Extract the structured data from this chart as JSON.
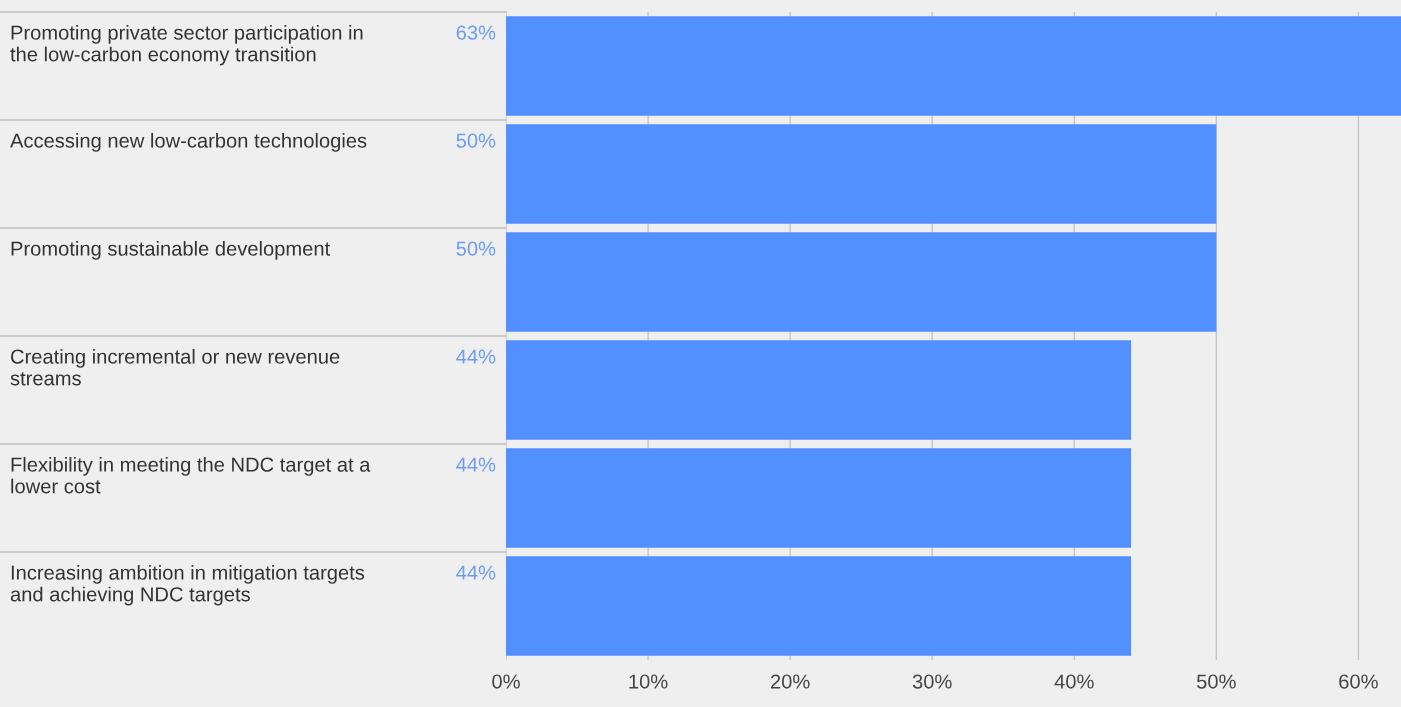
{
  "chart_data": {
    "type": "bar",
    "orientation": "horizontal",
    "categories": [
      "Promoting private sector participation in\nthe low-carbon economy transition",
      "Accessing new low-carbon technologies",
      "Promoting sustainable development",
      "Creating incremental or new revenue\nstreams",
      "Flexibility in meeting the NDC target at a\nlower cost",
      "Increasing ambition in mitigation targets\nand achieving NDC targets"
    ],
    "values": [
      63,
      50,
      50,
      44,
      44,
      44
    ],
    "value_labels": [
      "63%",
      "50%",
      "50%",
      "44%",
      "44%",
      "44%"
    ],
    "color": "#528fff",
    "xlim": [
      0,
      63
    ],
    "xticks": [
      {
        "value": 0,
        "label": "0%"
      },
      {
        "value": 10,
        "label": "10%"
      },
      {
        "value": 20,
        "label": "20%"
      },
      {
        "value": 30,
        "label": "30%"
      },
      {
        "value": 40,
        "label": "40%"
      },
      {
        "value": 50,
        "label": "50%"
      },
      {
        "value": 60,
        "label": "60%"
      }
    ],
    "grid": "x",
    "legend": false
  }
}
